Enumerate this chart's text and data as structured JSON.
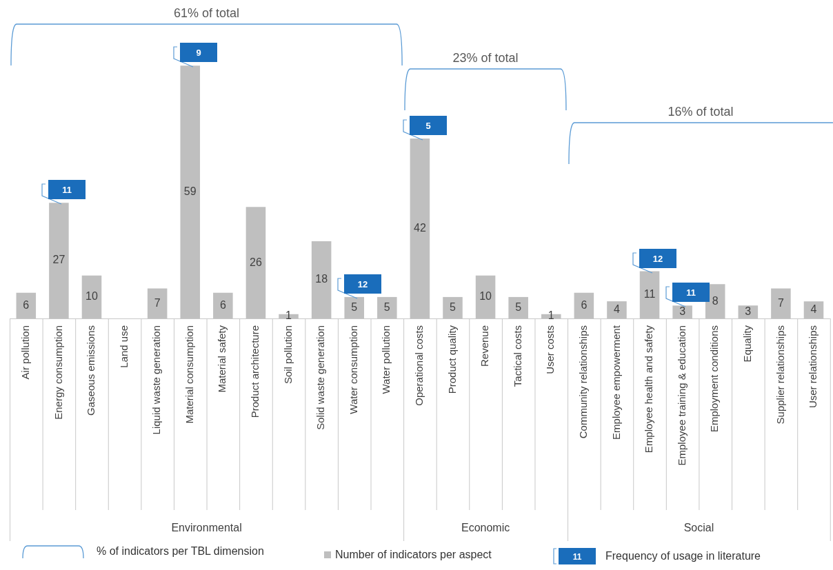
{
  "chart_data": {
    "type": "bar",
    "categories": [
      "Air pollution",
      "Energy consumption",
      "Gaseous emissions",
      "Land use",
      "Liquid waste generation",
      "Material consumption",
      "Material safety",
      "Product architecture",
      "Soil pollution",
      "Solid waste generation",
      "Water consumption",
      "Water pollution",
      "Operational costs",
      "Product quality",
      "Revenue",
      "Tactical costs",
      "User costs",
      "Community relationships",
      "Employee empowerment",
      "Employee health and safety",
      "Employee training & education",
      "Employment conditions",
      "Equality",
      "Supplier relationships",
      "User relationships"
    ],
    "series": [
      {
        "name": "Number of indicators per aspect",
        "color": "#bfbfbf",
        "values": [
          6,
          27,
          10,
          null,
          7,
          59,
          6,
          26,
          1,
          18,
          5,
          5,
          42,
          5,
          10,
          5,
          1,
          6,
          4,
          11,
          3,
          8,
          3,
          7,
          4
        ]
      }
    ],
    "data_labels": true,
    "annotations": [
      "61% of total",
      "23% of total",
      "16% of total",
      "Environmental",
      "Economic",
      "Social",
      {
        "text": "11",
        "x": "Energy consumption",
        "y": 27
      },
      {
        "text": "9",
        "x": "Material consumption",
        "y": 59
      },
      {
        "text": "12",
        "x": "Water consumption",
        "y": 5
      },
      {
        "text": "5",
        "x": "Operational costs",
        "y": 42
      },
      {
        "text": "12",
        "x": "Employee health and safety",
        "y": 11
      },
      {
        "text": "11",
        "x": "Employee training & education",
        "y": 3
      },
      "% of indicators per TBL dimension",
      "11",
      "Frequency of usage in literature"
    ],
    "legend": "bottom",
    "tick_labels": "x",
    "grid": false
  }
}
